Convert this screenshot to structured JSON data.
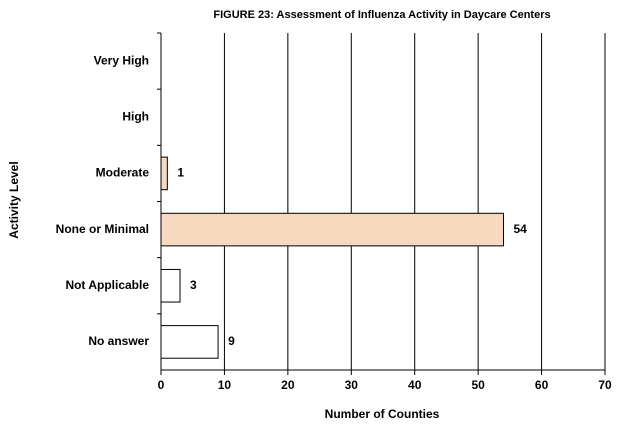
{
  "chart_data": {
    "type": "hbar",
    "title": "FIGURE 23: Assessment of Influenza Activity in Daycare Centers",
    "x_label": "Number of Counties",
    "y_label": "Activity Level",
    "categories": [
      "Very High",
      "High",
      "Moderate",
      "None or Minimal",
      "Not Applicable",
      "No answer"
    ],
    "values": [
      0,
      0,
      1,
      54,
      3,
      9
    ],
    "colors": [
      "#ffffff",
      "#ffffff",
      "#f7d9bf",
      "#f7d9bf",
      "#ffffff",
      "#ffffff"
    ],
    "xlim": [
      0,
      70
    ],
    "xticks": [
      0,
      10,
      20,
      30,
      40,
      50,
      60,
      70
    ],
    "grid": true
  }
}
